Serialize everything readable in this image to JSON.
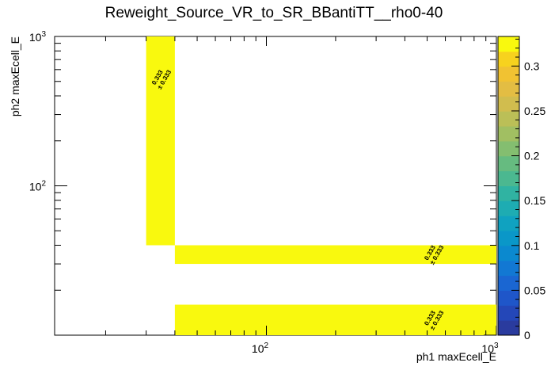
{
  "chart_data": {
    "type": "heatmap",
    "title": "Reweight_Source_VR_to_SR_BBantiTT__rho0-40",
    "xlabel": "ph1 maxEcell_E",
    "ylabel": "ph2 maxEcell_E",
    "x_scale": "log",
    "y_scale": "log",
    "xlim": [
      12,
      1000
    ],
    "ylim": [
      10,
      1000
    ],
    "x_ticks": [
      {
        "value": 100,
        "base": "10",
        "exp": "2"
      },
      {
        "value": 1000,
        "base": "10",
        "exp": "3"
      }
    ],
    "y_ticks": [
      {
        "value": 100,
        "base": "10",
        "exp": "2"
      },
      {
        "value": 1000,
        "base": "10",
        "exp": "3"
      }
    ],
    "cells": [
      {
        "x": [
          30,
          40
        ],
        "y": [
          40,
          1000
        ],
        "value": 0.333,
        "error": 0.333,
        "label": "0.333",
        "err_label": "± 0.333"
      },
      {
        "x": [
          40,
          1000
        ],
        "y": [
          30,
          40
        ],
        "value": 0.333,
        "error": 0.333,
        "label": "0.333",
        "err_label": "± 0.333"
      },
      {
        "x": [
          40,
          1000
        ],
        "y": [
          10,
          16
        ],
        "value": 0.333,
        "error": 0.333,
        "label": "0.333",
        "err_label": "± 0.333"
      }
    ],
    "colorbar": {
      "range": [
        0,
        0.333
      ],
      "ticks": [
        "0",
        "0.05",
        "0.1",
        "0.15",
        "0.2",
        "0.25",
        "0.3"
      ],
      "tick_values": [
        0,
        0.05,
        0.1,
        0.15,
        0.2,
        0.25,
        0.3
      ],
      "colors": [
        "#2a3b9e",
        "#2447b8",
        "#1f56c9",
        "#1a66d2",
        "#1278d3",
        "#0b89cf",
        "#0a97c8",
        "#10a2c0",
        "#1eacb2",
        "#30b3a2",
        "#4bb890",
        "#66bb80",
        "#84be70",
        "#a1bf62",
        "#bbbf57",
        "#d1bd4e",
        "#e3bd43",
        "#f1c232",
        "#f7d21e",
        "#f9f90e"
      ]
    },
    "cell_color": "#f9f90e"
  }
}
